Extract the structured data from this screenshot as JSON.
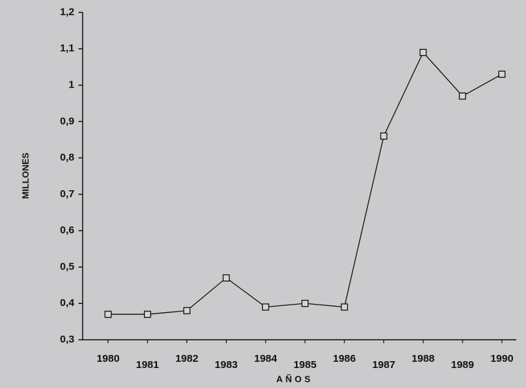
{
  "chart_data": {
    "type": "line",
    "x_label": "AÑOS",
    "y_label": "MILLONES",
    "categories": [
      "1980",
      "1981",
      "1982",
      "1983",
      "1984",
      "1985",
      "1986",
      "1987",
      "1988",
      "1989",
      "1990"
    ],
    "series": [
      {
        "color": "#111111",
        "values": [
          0.37,
          0.37,
          0.38,
          0.47,
          0.39,
          0.4,
          0.39,
          0.86,
          1.09,
          0.97,
          1.03
        ]
      }
    ],
    "ylim": [
      0.3,
      1.2
    ],
    "yticks": [
      {
        "value": 0.3,
        "label": "0,3"
      },
      {
        "value": 0.4,
        "label": "0,4"
      },
      {
        "value": 0.5,
        "label": "0,5"
      },
      {
        "value": 0.6,
        "label": "0,6"
      },
      {
        "value": 0.7,
        "label": "0,7"
      },
      {
        "value": 0.8,
        "label": "0,8"
      },
      {
        "value": 0.9,
        "label": "0,9"
      },
      1,
      {
        "value": 1.1,
        "label": "1,1"
      },
      {
        "value": 1.2,
        "label": "1,2"
      }
    ]
  }
}
